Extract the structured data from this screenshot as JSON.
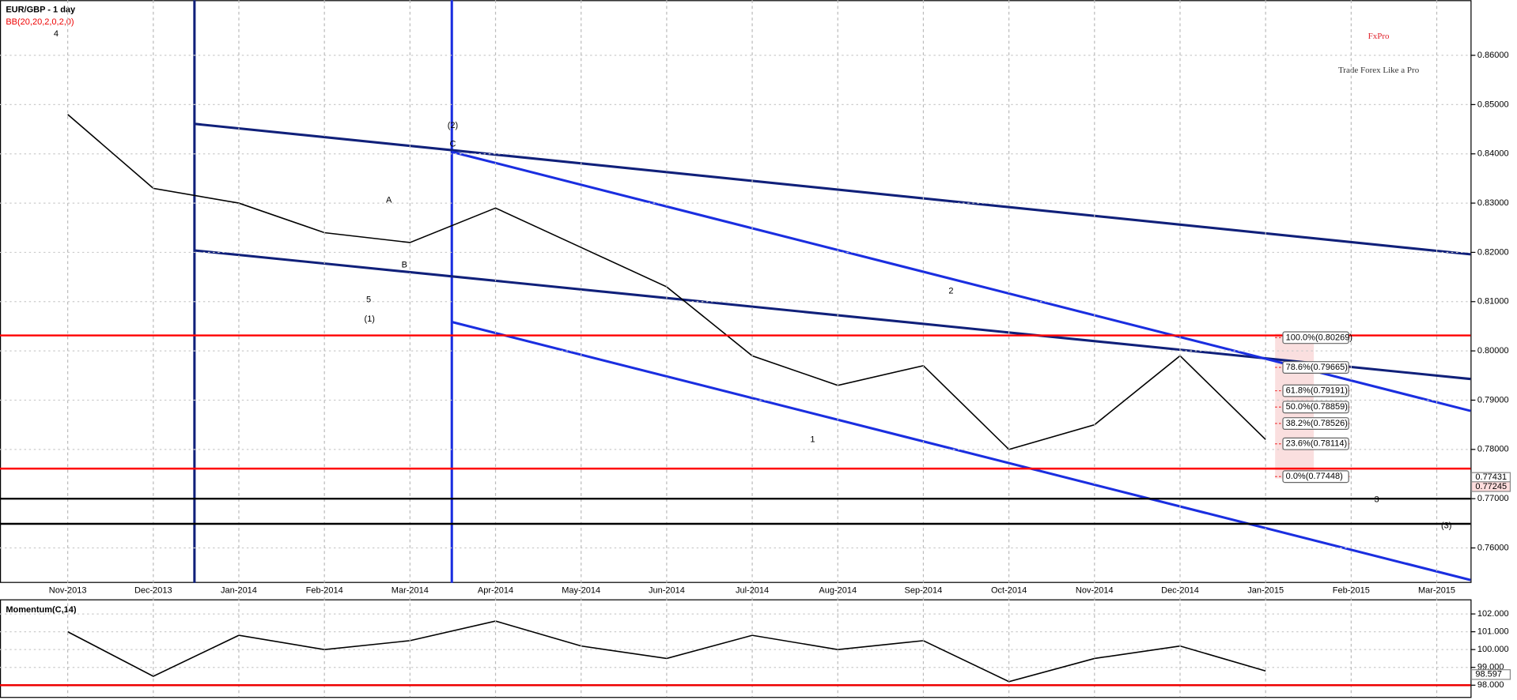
{
  "chart_data": [
    {
      "type": "line",
      "title": "EUR/GBP - 1 day",
      "subtitle": "BB(20,20,2,0,2,0)",
      "brand": "FxPro",
      "tagline": "Trade Forex Like a Pro",
      "categories": [
        "Nov-2013",
        "Dec-2013",
        "Jan-2014",
        "Feb-2014",
        "Mar-2014",
        "Apr-2014",
        "May-2014",
        "Jun-2014",
        "Jul-2014",
        "Aug-2014",
        "Sep-2014",
        "Oct-2014",
        "Nov-2014",
        "Dec-2014",
        "Jan-2015",
        "Feb-2015",
        "Mar-2015"
      ],
      "series": [
        {
          "name": "EUR/GBP",
          "color": "#000000",
          "values": [
            0.848,
            0.833,
            0.83,
            0.824,
            0.822,
            0.829,
            0.821,
            0.813,
            0.799,
            0.793,
            0.797,
            0.78,
            0.785,
            0.799,
            0.782,
            null,
            null
          ]
        }
      ],
      "ylim": [
        0.7529,
        0.8712
      ],
      "yticks": [
        {
          "value": 0.76,
          "label": "0.76000"
        },
        {
          "value": 0.77,
          "label": "0.77000"
        },
        {
          "value": 0.78,
          "label": "0.78000"
        },
        {
          "value": 0.79,
          "label": "0.79000"
        },
        {
          "value": 0.8,
          "label": "0.80000"
        },
        {
          "value": 0.81,
          "label": "0.81000"
        },
        {
          "value": 0.82,
          "label": "0.82000"
        },
        {
          "value": 0.83,
          "label": "0.83000"
        },
        {
          "value": 0.84,
          "label": "0.84000"
        },
        {
          "value": 0.85,
          "label": "0.85000"
        },
        {
          "value": 0.86,
          "label": "0.86000"
        }
      ],
      "grid": true,
      "levels": [
        {
          "value": 0.80314,
          "color": "#ff0000"
        },
        {
          "value": 0.7761,
          "color": "#ff0000"
        },
        {
          "value": 0.77,
          "color": "#000000"
        },
        {
          "value": 0.7649,
          "color": "#000000"
        }
      ],
      "fib_levels": [
        {
          "value": 0.80269,
          "label": "100.0%(0.80269)"
        },
        {
          "value": 0.79665,
          "label": "78.6%(0.79665)"
        },
        {
          "value": 0.79191,
          "label": "61.8%(0.79191)"
        },
        {
          "value": 0.78859,
          "label": "50.0%(0.78859)"
        },
        {
          "value": 0.78526,
          "label": "38.2%(0.78526)"
        },
        {
          "value": 0.78114,
          "label": "23.6%(0.78114)"
        },
        {
          "value": 0.77448,
          "label": "0.0%(0.77448)"
        }
      ],
      "price_labels": [
        {
          "value": 0.77431,
          "label": "0.77431"
        },
        {
          "value": 0.77245,
          "label": "0.77245"
        }
      ],
      "annotations": [
        "4",
        "(2)",
        "C",
        "A",
        "B",
        "5",
        "(1)",
        "2",
        "1",
        "3",
        "(3)"
      ]
    },
    {
      "type": "line",
      "title": "Momentum(C,14)",
      "series": [
        {
          "name": "Momentum",
          "color": "#000000",
          "values": [
            101,
            98.5,
            100.8,
            100,
            100.5,
            101.6,
            100.2,
            99.5,
            100.8,
            100,
            100.5,
            98.2,
            99.5,
            100.2,
            98.8,
            null,
            null
          ]
        }
      ],
      "ylim": [
        97.34,
        102.82
      ],
      "yticks": [
        {
          "value": 98,
          "label": "98.000"
        },
        {
          "value": 99,
          "label": "99.000"
        },
        {
          "value": 100,
          "label": "100.000"
        },
        {
          "value": 101,
          "label": "101.000"
        },
        {
          "value": 102,
          "label": "102.000"
        }
      ],
      "level": 98,
      "last_label": {
        "value": 98.597,
        "label": "98.597"
      }
    }
  ]
}
